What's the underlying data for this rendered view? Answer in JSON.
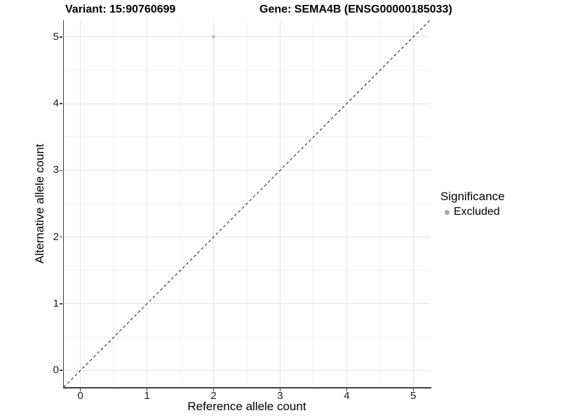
{
  "chart_data": {
    "type": "scatter",
    "titles": {
      "left": "Variant: 15:90760699",
      "right": "Gene: SEMA4B (ENSG00000185033)"
    },
    "xlabel": "Reference allele count",
    "ylabel": "Alternative allele count",
    "xlim": [
      -0.25,
      5.25
    ],
    "ylim": [
      -0.25,
      5.25
    ],
    "x_ticks": [
      0,
      1,
      2,
      3,
      4,
      5
    ],
    "y_ticks": [
      0,
      1,
      2,
      3,
      4,
      5
    ],
    "minor_step": 0.5,
    "grid": true,
    "points": [
      {
        "x": 2,
        "y": 5,
        "series": "Excluded"
      }
    ],
    "reference_line": {
      "kind": "identity",
      "linetype": "dashed",
      "color": "#111111"
    },
    "legend": {
      "title": "Significance",
      "position": "right",
      "items": [
        {
          "label": "Excluded",
          "marker": "circle",
          "color": "#ababab"
        }
      ]
    },
    "colors": {
      "point": "#bdbdbd",
      "grid_major": "#e4e4e4",
      "grid_minor": "#f2f2f2",
      "axis_line": "#404040"
    }
  }
}
